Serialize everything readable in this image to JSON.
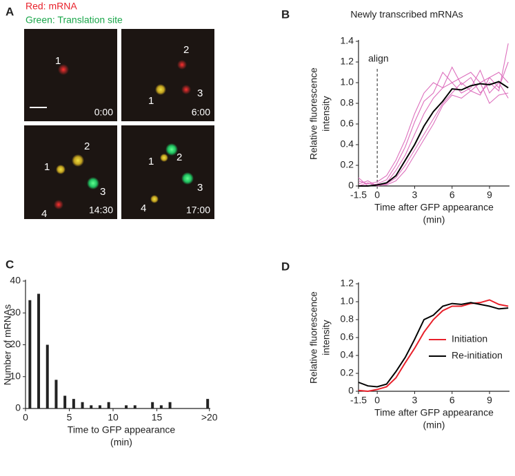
{
  "panel_a": {
    "label": "A",
    "legend": [
      "Red: mRNA",
      "Green: Translation site"
    ],
    "frames": [
      {
        "time": "0:00",
        "spots": [
          "1"
        ]
      },
      {
        "time": "6:00",
        "spots": [
          "2",
          "1",
          "3"
        ]
      },
      {
        "time": "14:30",
        "spots": [
          "2",
          "1",
          "3",
          "4"
        ]
      },
      {
        "time": "17:00",
        "spots": [
          "2",
          "1",
          "3",
          "4"
        ]
      }
    ]
  },
  "chart_data": [
    {
      "type": "line",
      "label": "B",
      "title": "Newly transcribed mRNAs",
      "ylabel": [
        "Relative fluorescence",
        "intensity"
      ],
      "xlabel": [
        "Time after GFP appearance",
        "(min)"
      ],
      "annotations": [
        {
          "text": "align",
          "x": 0
        }
      ],
      "xlim": [
        -1.5,
        10.6
      ],
      "xticks": [
        -1.5,
        0,
        3,
        6,
        9
      ],
      "ylim": [
        0,
        1.4
      ],
      "yticks": [
        0,
        0.2,
        0.4,
        0.6,
        0.8,
        {
          "value": 1,
          "label": "1.0"
        },
        1.2,
        1.4
      ],
      "x": [
        -1.5,
        -0.75,
        0,
        0.75,
        1.5,
        2.25,
        3,
        3.75,
        4.5,
        5.25,
        6,
        6.75,
        7.5,
        8.25,
        9,
        9.75,
        10.5
      ],
      "series": [
        {
          "color": "#dd6fbd",
          "values": [
            0.02,
            0.05,
            0,
            0.03,
            0.15,
            0.3,
            0.5,
            0.7,
            0.85,
            0.95,
            1.0,
            1.05,
            1.1,
            1.0,
            1.05,
            0.95,
            1.2
          ]
        },
        {
          "color": "#dd6fbd",
          "values": [
            0.08,
            0,
            0.02,
            0.06,
            0.2,
            0.38,
            0.62,
            0.82,
            0.9,
            1.1,
            1.0,
            0.9,
            0.95,
            1.12,
            0.9,
            1.0,
            0.85
          ]
        },
        {
          "color": "#dd6fbd",
          "values": [
            0,
            0.03,
            0,
            0.02,
            0.08,
            0.2,
            0.35,
            0.5,
            0.65,
            0.8,
            0.9,
            1.0,
            0.92,
            0.88,
            1.05,
            1.1,
            1.0
          ]
        },
        {
          "color": "#dd6fbd",
          "values": [
            0.05,
            0.02,
            0.04,
            0.1,
            0.25,
            0.45,
            0.7,
            0.9,
            1.0,
            0.95,
            1.15,
            0.98,
            1.05,
            0.9,
            1.0,
            0.92,
            1.38
          ]
        },
        {
          "color": "#dd6fbd",
          "values": [
            0,
            0,
            0.01,
            0.01,
            0.05,
            0.15,
            0.3,
            0.45,
            0.6,
            0.78,
            0.88,
            0.85,
            0.92,
            1.0,
            0.8,
            0.88,
            0.9
          ]
        },
        {
          "color": "#000000",
          "values": [
            0,
            0,
            0.01,
            0.03,
            0.1,
            0.25,
            0.4,
            0.58,
            0.72,
            0.82,
            0.94,
            0.93,
            0.97,
            0.99,
            0.98,
            1.01,
            0.95
          ]
        }
      ]
    },
    {
      "type": "bar",
      "label": "C",
      "ylabel": [
        "Number of mRNAs"
      ],
      "xlabel": [
        "Time to GFP appearance",
        "(min)"
      ],
      "xlim": [
        0,
        21.1
      ],
      "xticks": [
        0,
        5,
        10,
        15,
        {
          "value": 21,
          "label": ">20"
        }
      ],
      "ylim": [
        0,
        40
      ],
      "yticks": [
        0,
        10,
        20,
        30,
        40
      ],
      "color": "#222222",
      "x": [
        0.5,
        1.5,
        2.5,
        3.5,
        4.5,
        5.5,
        6.5,
        7.5,
        8.5,
        9.5,
        11.5,
        12.5,
        14.5,
        15.5,
        16.5,
        20.8
      ],
      "values": [
        34,
        36,
        20,
        9,
        4,
        3,
        2,
        1,
        1,
        2,
        1,
        1,
        2,
        1,
        2,
        3
      ]
    },
    {
      "type": "line",
      "label": "D",
      "ylabel": [
        "Relative fluorescence",
        "intensity"
      ],
      "xlabel": [
        "Time after GFP appearance",
        "(min)"
      ],
      "legend": "lower right",
      "xlim": [
        -1.5,
        10.6
      ],
      "xticks": [
        -1.5,
        0,
        3,
        6,
        9
      ],
      "ylim": [
        0,
        1.2
      ],
      "yticks": [
        0,
        0.2,
        0.4,
        0.6,
        0.8,
        {
          "value": 1,
          "label": "1.0"
        },
        1.2
      ],
      "x": [
        -1.5,
        -0.75,
        0,
        0.75,
        1.5,
        2.25,
        3,
        3.75,
        4.5,
        5.25,
        6,
        6.75,
        7.5,
        8.25,
        9,
        9.75,
        10.5
      ],
      "series": [
        {
          "name": "Initiation",
          "color": "#e8202a",
          "values": [
            0.01,
            0,
            0.02,
            0.05,
            0.15,
            0.32,
            0.48,
            0.66,
            0.8,
            0.9,
            0.95,
            0.95,
            0.98,
            0.99,
            1.02,
            0.97,
            0.95
          ]
        },
        {
          "name": "Re-initiation",
          "color": "#000000",
          "values": [
            0.1,
            0.06,
            0.05,
            0.08,
            0.22,
            0.38,
            0.58,
            0.8,
            0.85,
            0.95,
            0.98,
            0.97,
            0.99,
            0.97,
            0.95,
            0.92,
            0.93
          ]
        }
      ]
    }
  ]
}
